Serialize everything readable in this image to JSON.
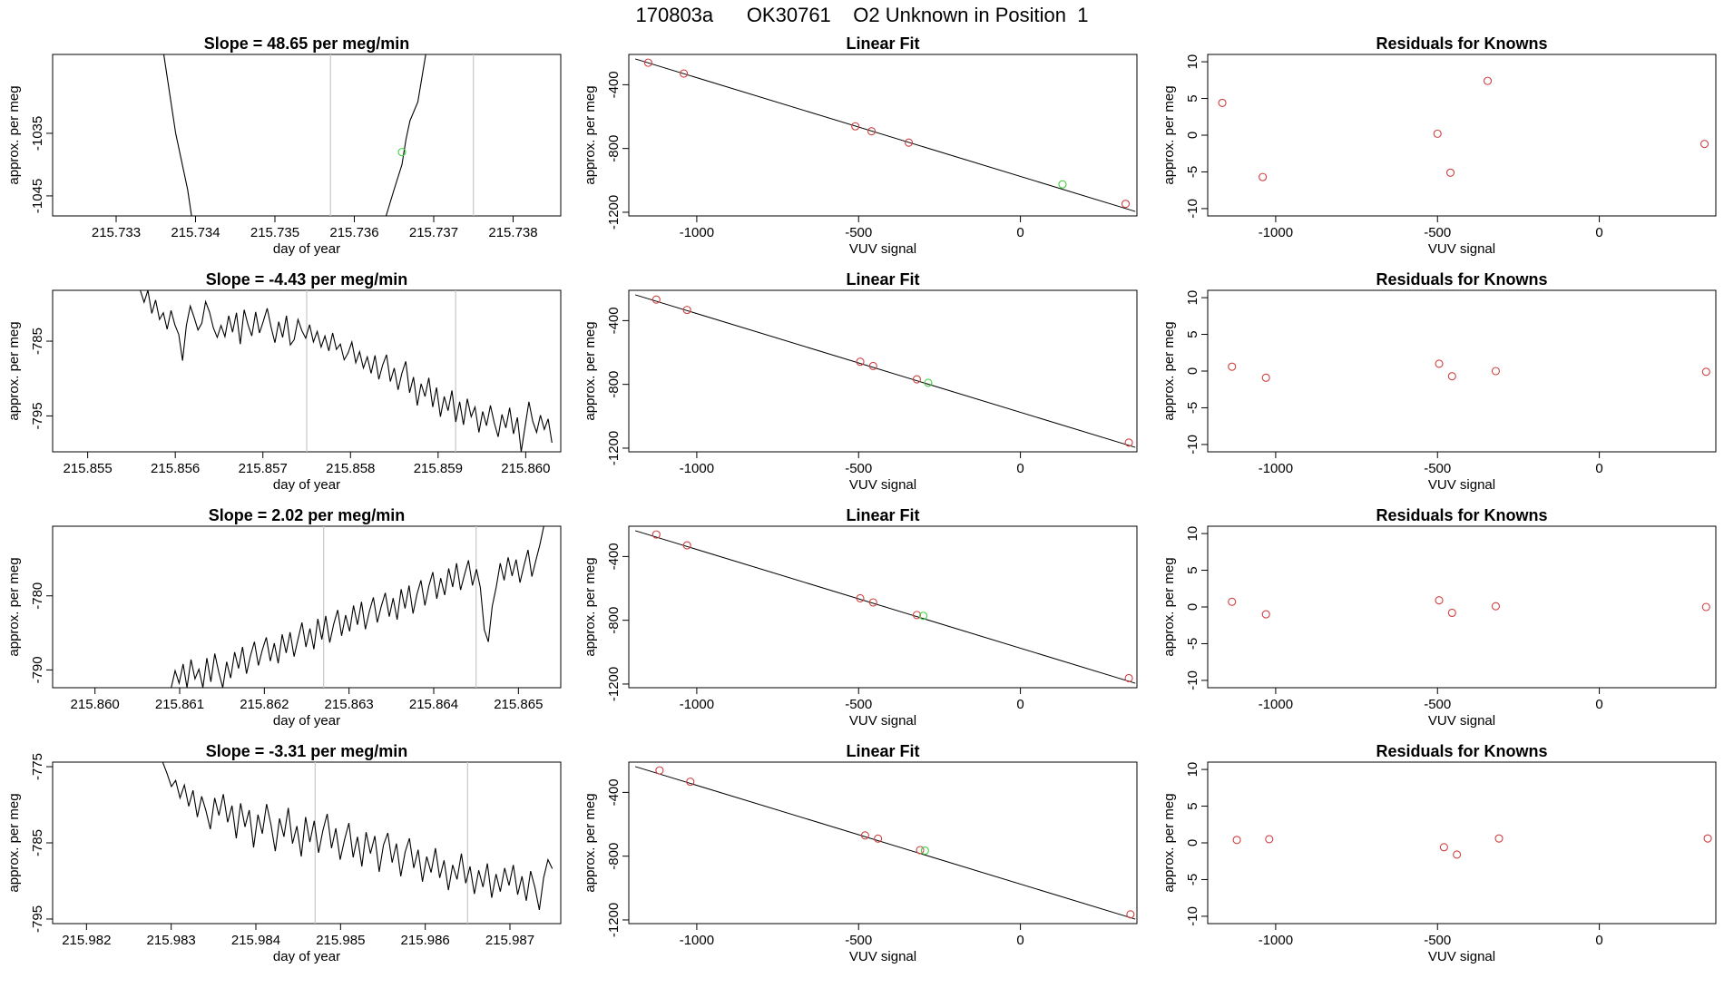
{
  "title": "170803a      OK30761    O2 Unknown in Position  1",
  "colors": {
    "known": "#d04040",
    "unknown": "#40d040",
    "trace": "#000000",
    "marker": "#c8c8c8"
  },
  "chart_data": [
    {
      "type": "line",
      "row": 0,
      "col": 0,
      "title": "Slope =  48.65  per meg/min",
      "xlabel": "day of year",
      "ylabel": "approx. per meg",
      "xlim": [
        215.7322,
        215.7386
      ],
      "ylim": [
        -1048.2,
        -1022.4
      ],
      "xticks": [
        215.733,
        215.734,
        215.735,
        215.736,
        215.737,
        215.738
      ],
      "xtick_labels": [
        "215.733",
        "215.734",
        "215.735",
        "215.736",
        "215.737",
        "215.738"
      ],
      "yticks": [
        -1035,
        -1045
      ],
      "ytick_labels": [
        "-1035",
        "-1045"
      ],
      "vlines": [
        215.7357,
        215.7375
      ],
      "trace_segments": [
        [
          [
            215.7336,
            -1022.4
          ],
          [
            215.73375,
            -1035
          ],
          [
            215.7339,
            -1044
          ],
          [
            215.73395,
            -1048.2
          ]
        ],
        [
          [
            215.7364,
            -1048.2
          ],
          [
            215.7365,
            -1044
          ],
          [
            215.7366,
            -1040
          ],
          [
            215.73665,
            -1036
          ],
          [
            215.7367,
            -1033
          ],
          [
            215.7368,
            -1030
          ],
          [
            215.7369,
            -1022.4
          ]
        ]
      ],
      "marker_points": [
        [
          215.7366,
          -1038
        ]
      ]
    },
    {
      "type": "scatter",
      "row": 0,
      "col": 1,
      "title": "Linear Fit",
      "xlabel": "VUV signal",
      "ylabel": "approx. per meg",
      "xlim": [
        -1210,
        360
      ],
      "ylim": [
        -1223,
        -210
      ],
      "xticks": [
        -1000,
        -500,
        0
      ],
      "xtick_labels": [
        "-1000",
        "-500",
        "0"
      ],
      "yticks": [
        -400,
        -800,
        -1200
      ],
      "ytick_labels": [
        "-400",
        "-800",
        "-1200"
      ],
      "fit_line": [
        [
          -1190,
          -238
        ],
        [
          355,
          -1195
        ]
      ],
      "knowns": [
        [
          -1150,
          -262
        ],
        [
          -1040,
          -330
        ],
        [
          -510,
          -661
        ],
        [
          -460,
          -692
        ],
        [
          -345,
          -763
        ],
        [
          325,
          -1147
        ]
      ],
      "unknown": [
        [
          130,
          -1025
        ]
      ]
    },
    {
      "type": "scatter",
      "row": 0,
      "col": 2,
      "title": "Residuals for Knowns",
      "xlabel": "VUV signal",
      "ylabel": "approx. per meg",
      "xlim": [
        -1210,
        360
      ],
      "ylim": [
        -11,
        11
      ],
      "xticks": [
        -1000,
        -500,
        0
      ],
      "xtick_labels": [
        "-1000",
        "-500",
        "0"
      ],
      "yticks": [
        10,
        5,
        0,
        -5,
        -10
      ],
      "ytick_labels": [
        "10",
        "5",
        "0",
        "-5",
        "-10"
      ],
      "knowns": [
        [
          -1165,
          4.4
        ],
        [
          -1040,
          -5.7
        ],
        [
          -500,
          0.2
        ],
        [
          -460,
          -5.1
        ],
        [
          -345,
          7.4
        ],
        [
          325,
          -1.2
        ]
      ]
    },
    {
      "type": "line",
      "row": 1,
      "col": 0,
      "title": "Slope =  -4.43  per meg/min",
      "xlabel": "day of year",
      "ylabel": "approx. per meg",
      "xlim": [
        215.8546,
        215.8604
      ],
      "ylim": [
        -799.8,
        -778.2
      ],
      "xticks": [
        215.855,
        215.856,
        215.857,
        215.858,
        215.859,
        215.86
      ],
      "xtick_labels": [
        "215.855",
        "215.856",
        "215.857",
        "215.858",
        "215.859",
        "215.860"
      ],
      "yticks": [
        -785,
        -795
      ],
      "ytick_labels": [
        "-785",
        "-795"
      ],
      "vlines": [
        215.8575,
        215.8592
      ],
      "trace_start": 215.8556,
      "trace_end": 215.8603,
      "trace_values": [
        -778.2,
        -779.8,
        -778.2,
        -781.3,
        -779.5,
        -782.1,
        -781.2,
        -783.4,
        -780.9,
        -782.8,
        -784.1,
        -787.6,
        -782.9,
        -780.3,
        -781.8,
        -783.5,
        -782.6,
        -779.7,
        -781.1,
        -783.2,
        -784.5,
        -782.9,
        -784.4,
        -781.6,
        -783.8,
        -781.2,
        -785.4,
        -780.8,
        -782.8,
        -784.3,
        -781.1,
        -783.9,
        -782.3,
        -780.6,
        -783.1,
        -785.2,
        -782.4,
        -784.5,
        -781.6,
        -785.5,
        -784.8,
        -782.1,
        -783.6,
        -784.6,
        -782.8,
        -785.1,
        -783.7,
        -785.8,
        -784.3,
        -786.3,
        -783.9,
        -786.1,
        -785.4,
        -787.5,
        -786.6,
        -785.1,
        -787.9,
        -786.4,
        -788.6,
        -787.1,
        -789.3,
        -786.9,
        -790.1,
        -788.2,
        -786.8,
        -790.4,
        -788.6,
        -791.5,
        -789.3,
        -787.7,
        -791.9,
        -789.8,
        -793.6,
        -790.7,
        -792.4,
        -789.9,
        -793.8,
        -791.2,
        -795.1,
        -792.4,
        -794.3,
        -791.6,
        -795.8,
        -793.1,
        -796.2,
        -792.7,
        -795.1,
        -793.8,
        -797.2,
        -794.4,
        -796.3,
        -793.6,
        -795.9,
        -797.8,
        -794.8,
        -796.6,
        -793.9,
        -797.4,
        -795.2,
        -799.8,
        -796.4,
        -793.1,
        -795.7,
        -797.2,
        -794.9,
        -796.8,
        -795.4,
        -798.6
      ]
    },
    {
      "type": "scatter",
      "row": 1,
      "col": 1,
      "title": "Linear Fit",
      "xlabel": "VUV signal",
      "ylabel": "approx. per meg",
      "xlim": [
        -1210,
        360
      ],
      "ylim": [
        -1223,
        -210
      ],
      "xticks": [
        -1000,
        -500,
        0
      ],
      "xtick_labels": [
        "-1000",
        "-500",
        "0"
      ],
      "yticks": [
        -400,
        -800,
        -1200
      ],
      "ytick_labels": [
        "-400",
        "-800",
        "-1200"
      ],
      "fit_line": [
        [
          -1190,
          -238
        ],
        [
          355,
          -1195
        ]
      ],
      "knowns": [
        [
          -1125,
          -268
        ],
        [
          -1030,
          -333
        ],
        [
          -495,
          -658
        ],
        [
          -455,
          -685
        ],
        [
          -320,
          -768
        ],
        [
          335,
          -1165
        ]
      ],
      "unknown": [
        [
          -285,
          -790
        ]
      ]
    },
    {
      "type": "scatter",
      "row": 1,
      "col": 2,
      "title": "Residuals for Knowns",
      "xlabel": "VUV signal",
      "ylabel": "approx. per meg",
      "xlim": [
        -1210,
        360
      ],
      "ylim": [
        -11,
        11
      ],
      "xticks": [
        -1000,
        -500,
        0
      ],
      "xtick_labels": [
        "-1000",
        "-500",
        "0"
      ],
      "yticks": [
        10,
        5,
        0,
        -5,
        -10
      ],
      "ytick_labels": [
        "10",
        "5",
        "0",
        "-5",
        "-10"
      ],
      "knowns": [
        [
          -1135,
          0.6
        ],
        [
          -1030,
          -0.9
        ],
        [
          -495,
          1.0
        ],
        [
          -455,
          -0.7
        ],
        [
          -320,
          0.0
        ],
        [
          330,
          -0.1
        ]
      ]
    },
    {
      "type": "line",
      "row": 2,
      "col": 0,
      "title": "Slope =  2.02  per meg/min",
      "xlabel": "day of year",
      "ylabel": "approx. per meg",
      "xlim": [
        215.8595,
        215.8655
      ],
      "ylim": [
        -792.4,
        -770.6
      ],
      "xticks": [
        215.86,
        215.861,
        215.862,
        215.863,
        215.864,
        215.865
      ],
      "xtick_labels": [
        "215.860",
        "215.861",
        "215.862",
        "215.863",
        "215.864",
        "215.865"
      ],
      "yticks": [
        -780,
        -790
      ],
      "ytick_labels": [
        "-780",
        "-790"
      ],
      "vlines": [
        215.8627,
        215.8645
      ],
      "trace_start": 215.8609,
      "trace_end": 215.8653,
      "trace_values": [
        -792.4,
        -790.1,
        -791.8,
        -789.2,
        -792.4,
        -788.6,
        -791.2,
        -789.9,
        -792.4,
        -788.4,
        -791.6,
        -787.8,
        -790.3,
        -792.4,
        -788.9,
        -791.1,
        -787.6,
        -789.8,
        -786.9,
        -790.5,
        -788.1,
        -786.2,
        -789.4,
        -787.3,
        -785.6,
        -788.8,
        -786.4,
        -789.1,
        -785.2,
        -787.7,
        -784.9,
        -788.2,
        -785.8,
        -783.6,
        -786.9,
        -784.4,
        -787.2,
        -783.1,
        -785.9,
        -782.7,
        -786.3,
        -783.8,
        -781.9,
        -785.4,
        -782.6,
        -784.8,
        -781.3,
        -783.9,
        -780.8,
        -784.5,
        -782.1,
        -780.2,
        -783.6,
        -781.4,
        -779.6,
        -782.8,
        -780.3,
        -783.2,
        -779.1,
        -781.7,
        -778.6,
        -782.4,
        -779.8,
        -777.9,
        -781.3,
        -778.7,
        -776.8,
        -780.4,
        -777.6,
        -779.9,
        -776.3,
        -778.8,
        -775.6,
        -779.2,
        -777.1,
        -775.2,
        -778.6,
        -776.4,
        -778.9,
        -784.6,
        -786.2,
        -781.4,
        -778.8,
        -775.6,
        -777.9,
        -774.8,
        -777.3,
        -775.1,
        -778.2,
        -775.9,
        -773.8,
        -777.4,
        -775.2,
        -773.1,
        -770.6
      ]
    },
    {
      "type": "scatter",
      "row": 2,
      "col": 1,
      "title": "Linear Fit",
      "xlabel": "VUV signal",
      "ylabel": "approx. per meg",
      "xlim": [
        -1210,
        360
      ],
      "ylim": [
        -1223,
        -210
      ],
      "xticks": [
        -1000,
        -500,
        0
      ],
      "xtick_labels": [
        "-1000",
        "-500",
        "0"
      ],
      "yticks": [
        -400,
        -800,
        -1200
      ],
      "ytick_labels": [
        "-400",
        "-800",
        "-1200"
      ],
      "fit_line": [
        [
          -1190,
          -238
        ],
        [
          355,
          -1195
        ]
      ],
      "knowns": [
        [
          -1125,
          -262
        ],
        [
          -1030,
          -330
        ],
        [
          -495,
          -662
        ],
        [
          -455,
          -688
        ],
        [
          -320,
          -767
        ],
        [
          335,
          -1163
        ]
      ],
      "unknown": [
        [
          -300,
          -772
        ]
      ]
    },
    {
      "type": "scatter",
      "row": 2,
      "col": 2,
      "title": "Residuals for Knowns",
      "xlabel": "VUV signal",
      "ylabel": "approx. per meg",
      "xlim": [
        -1210,
        360
      ],
      "ylim": [
        -11,
        11
      ],
      "xticks": [
        -1000,
        -500,
        0
      ],
      "xtick_labels": [
        "-1000",
        "-500",
        "0"
      ],
      "yticks": [
        10,
        5,
        0,
        -5,
        -10
      ],
      "ytick_labels": [
        "10",
        "5",
        "0",
        "-5",
        "-10"
      ],
      "knowns": [
        [
          -1135,
          0.7
        ],
        [
          -1030,
          -1.0
        ],
        [
          -495,
          0.9
        ],
        [
          -455,
          -0.8
        ],
        [
          -320,
          0.1
        ],
        [
          330,
          0.0
        ]
      ]
    },
    {
      "type": "line",
      "row": 3,
      "col": 0,
      "title": "Slope =  -3.31  per meg/min",
      "xlabel": "day of year",
      "ylabel": "approx. per meg",
      "xlim": [
        215.9816,
        215.9876
      ],
      "ylim": [
        -795.6,
        -774.4
      ],
      "xticks": [
        215.982,
        215.983,
        215.984,
        215.985,
        215.986,
        215.987
      ],
      "xtick_labels": [
        "215.982",
        "215.983",
        "215.984",
        "215.985",
        "215.986",
        "215.987"
      ],
      "yticks": [
        -775,
        -785,
        -795
      ],
      "ytick_labels": [
        "-775",
        "-785",
        "-795"
      ],
      "vlines": [
        215.9847,
        215.9865
      ],
      "trace_start": 215.9829,
      "trace_end": 215.9875,
      "trace_values": [
        -774.4,
        -775.9,
        -777.6,
        -776.8,
        -779.1,
        -777.4,
        -780.2,
        -778.1,
        -781.6,
        -778.9,
        -780.8,
        -783.2,
        -779.1,
        -781.4,
        -778.6,
        -782.3,
        -780.1,
        -784.4,
        -779.8,
        -782.9,
        -780.7,
        -785.6,
        -781.3,
        -783.8,
        -779.9,
        -782.6,
        -786.1,
        -781.8,
        -784.2,
        -780.4,
        -785.1,
        -782.8,
        -786.8,
        -781.6,
        -784.9,
        -782.1,
        -786.3,
        -783.4,
        -781.2,
        -785.7,
        -783.1,
        -787.2,
        -784.6,
        -782.4,
        -786.9,
        -784.2,
        -788.1,
        -783.6,
        -786.4,
        -784.1,
        -788.8,
        -785.3,
        -783.7,
        -787.6,
        -785.1,
        -789.4,
        -786.2,
        -784.4,
        -788.3,
        -785.9,
        -790.1,
        -786.8,
        -788.9,
        -785.7,
        -789.6,
        -787.3,
        -791.2,
        -787.9,
        -789.8,
        -786.4,
        -790.3,
        -788.1,
        -791.7,
        -788.6,
        -790.8,
        -787.7,
        -792.2,
        -789.1,
        -791.4,
        -788.3,
        -790.6,
        -787.9,
        -791.8,
        -789.4,
        -792.6,
        -788.7,
        -790.9,
        -793.8,
        -789.6,
        -787.2,
        -788.4
      ]
    },
    {
      "type": "scatter",
      "row": 3,
      "col": 1,
      "title": "Linear Fit",
      "xlabel": "VUV signal",
      "ylabel": "approx. per meg",
      "xlim": [
        -1210,
        360
      ],
      "ylim": [
        -1223,
        -210
      ],
      "xticks": [
        -1000,
        -500,
        0
      ],
      "xtick_labels": [
        "-1000",
        "-500",
        "0"
      ],
      "yticks": [
        -400,
        -800,
        -1200
      ],
      "ytick_labels": [
        "-400",
        "-800",
        "-1200"
      ],
      "fit_line": [
        [
          -1190,
          -238
        ],
        [
          355,
          -1195
        ]
      ],
      "knowns": [
        [
          -1115,
          -262
        ],
        [
          -1020,
          -333
        ],
        [
          -480,
          -670
        ],
        [
          -440,
          -690
        ],
        [
          -310,
          -762
        ],
        [
          340,
          -1165
        ]
      ],
      "unknown": [
        [
          -295,
          -765
        ]
      ]
    },
    {
      "type": "scatter",
      "row": 3,
      "col": 2,
      "title": "Residuals for Knowns",
      "xlabel": "VUV signal",
      "ylabel": "approx. per meg",
      "xlim": [
        -1210,
        360
      ],
      "ylim": [
        -11,
        11
      ],
      "xticks": [
        -1000,
        -500,
        0
      ],
      "xtick_labels": [
        "-1000",
        "-500",
        "0"
      ],
      "yticks": [
        10,
        5,
        0,
        -5,
        -10
      ],
      "ytick_labels": [
        "10",
        "5",
        "0",
        "-5",
        "-10"
      ],
      "knowns": [
        [
          -1120,
          0.4
        ],
        [
          -1020,
          0.5
        ],
        [
          -480,
          -0.6
        ],
        [
          -440,
          -1.6
        ],
        [
          -310,
          0.6
        ],
        [
          335,
          0.6
        ]
      ]
    }
  ]
}
